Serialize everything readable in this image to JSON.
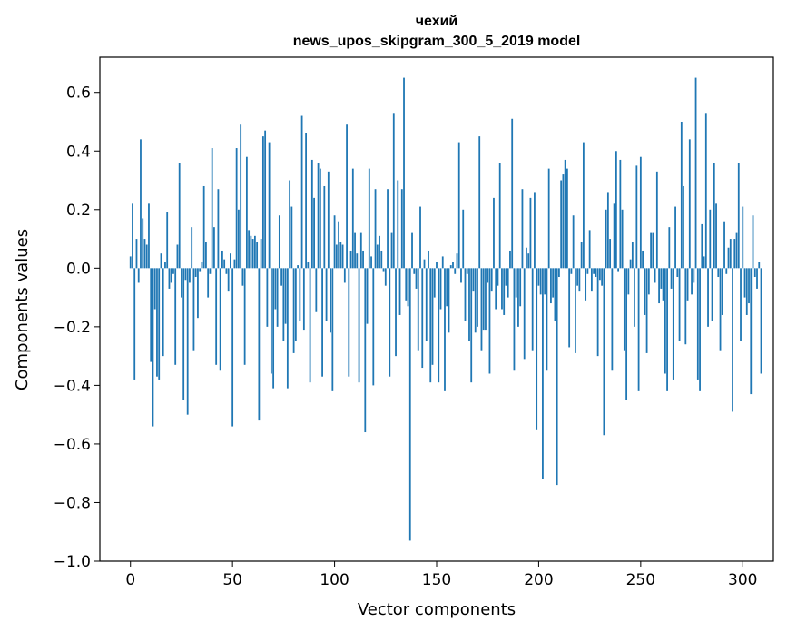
{
  "chart_data": {
    "type": "bar",
    "title": [
      "чехий",
      "news_upos_skipgram_300_5_2019 model"
    ],
    "xlabel": "Vector components",
    "ylabel": "Components values",
    "xlim": [
      -15,
      315
    ],
    "ylim": [
      -1.0,
      0.72
    ],
    "xticks": [
      0,
      50,
      100,
      150,
      200,
      250,
      300
    ],
    "xtick_labels": [
      "0",
      "50",
      "100",
      "150",
      "200",
      "250",
      "300"
    ],
    "yticks": [
      -1.0,
      -0.8,
      -0.6,
      -0.4,
      -0.2,
      0.0,
      0.2,
      0.4,
      0.6
    ],
    "ytick_labels": [
      "−1.0",
      "−0.8",
      "−0.6",
      "−0.4",
      "−0.2",
      "0.0",
      "0.2",
      "0.4",
      "0.6"
    ],
    "grid": false,
    "legend": "none",
    "bar_color": "#1f77b4",
    "values": [
      0.04,
      0.22,
      -0.38,
      0.1,
      -0.05,
      0.44,
      0.17,
      0.1,
      0.08,
      0.22,
      -0.32,
      -0.54,
      -0.14,
      -0.37,
      -0.38,
      0.05,
      -0.3,
      0.02,
      0.19,
      -0.07,
      -0.05,
      -0.02,
      -0.33,
      0.08,
      0.36,
      -0.1,
      -0.45,
      -0.04,
      -0.5,
      -0.05,
      0.14,
      -0.28,
      -0.03,
      -0.17,
      -0.01,
      0.02,
      0.28,
      0.09,
      -0.1,
      -0.02,
      0.41,
      0.14,
      -0.33,
      0.27,
      -0.35,
      0.06,
      0.03,
      -0.02,
      -0.08,
      0.05,
      -0.54,
      0.03,
      0.41,
      0.2,
      0.49,
      -0.06,
      -0.33,
      0.38,
      0.13,
      0.11,
      0.1,
      0.11,
      0.09,
      -0.52,
      0.1,
      0.45,
      0.47,
      -0.2,
      0.43,
      -0.36,
      -0.41,
      -0.14,
      -0.2,
      0.18,
      -0.06,
      -0.25,
      -0.19,
      -0.41,
      0.3,
      0.21,
      -0.29,
      -0.25,
      0.01,
      -0.18,
      0.52,
      -0.21,
      0.46,
      0.02,
      -0.39,
      0.37,
      0.24,
      -0.15,
      0.36,
      0.34,
      -0.37,
      0.28,
      -0.18,
      0.33,
      -0.22,
      -0.42,
      0.18,
      0.08,
      0.16,
      0.09,
      0.08,
      -0.05,
      0.49,
      -0.37,
      0.06,
      0.34,
      0.12,
      0.05,
      -0.39,
      0.12,
      0.06,
      -0.56,
      -0.19,
      0.34,
      0.04,
      -0.4,
      0.27,
      0.08,
      0.11,
      0.06,
      -0.01,
      -0.06,
      0.27,
      -0.37,
      0.12,
      0.53,
      -0.3,
      0.3,
      -0.16,
      0.27,
      0.65,
      -0.11,
      -0.13,
      -0.93,
      0.12,
      -0.02,
      -0.07,
      -0.28,
      0.21,
      -0.34,
      0.03,
      -0.25,
      0.06,
      -0.39,
      -0.33,
      -0.1,
      0.02,
      -0.39,
      -0.14,
      0.04,
      -0.42,
      -0.13,
      -0.22,
      0.01,
      0.02,
      -0.02,
      0.05,
      0.43,
      -0.05,
      0.2,
      -0.18,
      -0.02,
      -0.25,
      -0.39,
      -0.08,
      -0.22,
      -0.2,
      0.45,
      -0.28,
      -0.21,
      -0.21,
      -0.05,
      -0.36,
      -0.08,
      0.24,
      -0.14,
      -0.06,
      0.36,
      -0.14,
      -0.16,
      -0.06,
      -0.1,
      0.06,
      0.51,
      -0.35,
      -0.1,
      -0.2,
      -0.13,
      0.27,
      -0.31,
      0.07,
      0.05,
      0.24,
      -0.28,
      0.26,
      -0.55,
      -0.06,
      -0.09,
      -0.72,
      -0.09,
      -0.35,
      0.34,
      -0.12,
      -0.1,
      -0.18,
      -0.74,
      -0.03,
      0.3,
      0.32,
      0.37,
      0.34,
      -0.27,
      -0.02,
      0.18,
      -0.29,
      -0.06,
      -0.08,
      0.09,
      0.43,
      -0.11,
      -0.02,
      0.13,
      -0.08,
      -0.02,
      -0.03,
      -0.3,
      -0.04,
      -0.06,
      -0.57,
      0.2,
      0.26,
      0.1,
      -0.35,
      0.22,
      0.4,
      -0.01,
      0.37,
      0.2,
      -0.28,
      -0.45,
      -0.09,
      0.03,
      0.09,
      -0.2,
      0.35,
      -0.42,
      0.38,
      0.06,
      -0.16,
      -0.29,
      -0.09,
      0.12,
      0.12,
      -0.05,
      0.33,
      -0.12,
      -0.07,
      -0.11,
      -0.36,
      -0.42,
      0.14,
      -0.07,
      -0.38,
      0.21,
      -0.03,
      -0.25,
      0.5,
      0.28,
      -0.26,
      -0.11,
      0.44,
      -0.09,
      -0.05,
      0.65,
      -0.38,
      -0.42,
      0.15,
      0.04,
      0.53,
      -0.2,
      0.2,
      -0.18,
      0.36,
      0.22,
      -0.03,
      -0.28,
      -0.16,
      0.16,
      -0.02,
      0.07,
      0.1,
      -0.49,
      0.1,
      0.12,
      0.36,
      -0.25,
      0.21,
      -0.1,
      -0.16,
      -0.12,
      -0.43,
      0.18,
      -0.03,
      -0.07,
      0.02,
      -0.36
    ]
  }
}
